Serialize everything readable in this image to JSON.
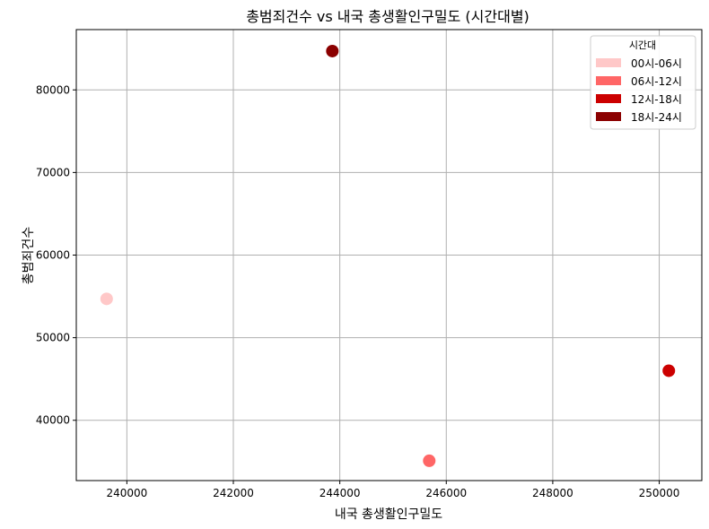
{
  "chart_data": {
    "type": "scatter",
    "title": "총범죄건수 vs 내국 총생활인구밀도 (시간대별)",
    "xlabel": "내국 총생활인구밀도",
    "ylabel": "총범죄건수",
    "xlim": [
      239050,
      250800
    ],
    "ylim": [
      32700,
      87300
    ],
    "xticks": [
      240000,
      242000,
      244000,
      246000,
      248000,
      250000
    ],
    "yticks": [
      40000,
      50000,
      60000,
      70000,
      80000
    ],
    "xtick_labels": [
      "240000",
      "242000",
      "244000",
      "246000",
      "248000",
      "250000"
    ],
    "ytick_labels": [
      "40000",
      "50000",
      "60000",
      "70000",
      "80000"
    ],
    "grid": true,
    "legend_title": "시간대",
    "legend_position": "top-right",
    "series": [
      {
        "name": "00시-06시",
        "color": "#ffc8c8",
        "x": 239620,
        "y": 54700
      },
      {
        "name": "06시-12시",
        "color": "#ff6666",
        "x": 245680,
        "y": 35100
      },
      {
        "name": "12시-18시",
        "color": "#cc0000",
        "x": 250180,
        "y": 46000
      },
      {
        "name": "18시-24시",
        "color": "#8b0000",
        "x": 243860,
        "y": 84700
      }
    ]
  }
}
